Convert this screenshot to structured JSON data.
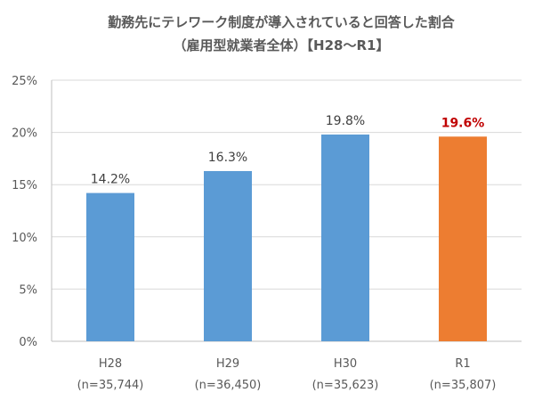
{
  "chart_data": {
    "type": "bar",
    "title": [
      "勤務先にテレワーク制度が導入されていると回答した割合",
      "（雇用型就業者全体）【H28〜R1】"
    ],
    "categories": [
      "H28",
      "H29",
      "H30",
      "R1"
    ],
    "category_sublabels": [
      "(n=35,744)",
      "(n=36,450)",
      "(n=35,623)",
      "(n=35,807)"
    ],
    "values": [
      14.2,
      16.3,
      19.8,
      19.6
    ],
    "data_labels": [
      "14.2%",
      "16.3%",
      "19.8%",
      "19.6%"
    ],
    "bar_colors": [
      "#5B9BD5",
      "#5B9BD5",
      "#5B9BD5",
      "#ED7D31"
    ],
    "highlight_label_color": "#C00000",
    "label_color": "#404040",
    "yticks": [
      0,
      5,
      10,
      15,
      20,
      25
    ],
    "ytick_labels": [
      "0%",
      "5%",
      "10%",
      "15%",
      "20%",
      "25%"
    ],
    "ylim": [
      0,
      25
    ],
    "grid": true,
    "xlabel": "",
    "ylabel": ""
  }
}
